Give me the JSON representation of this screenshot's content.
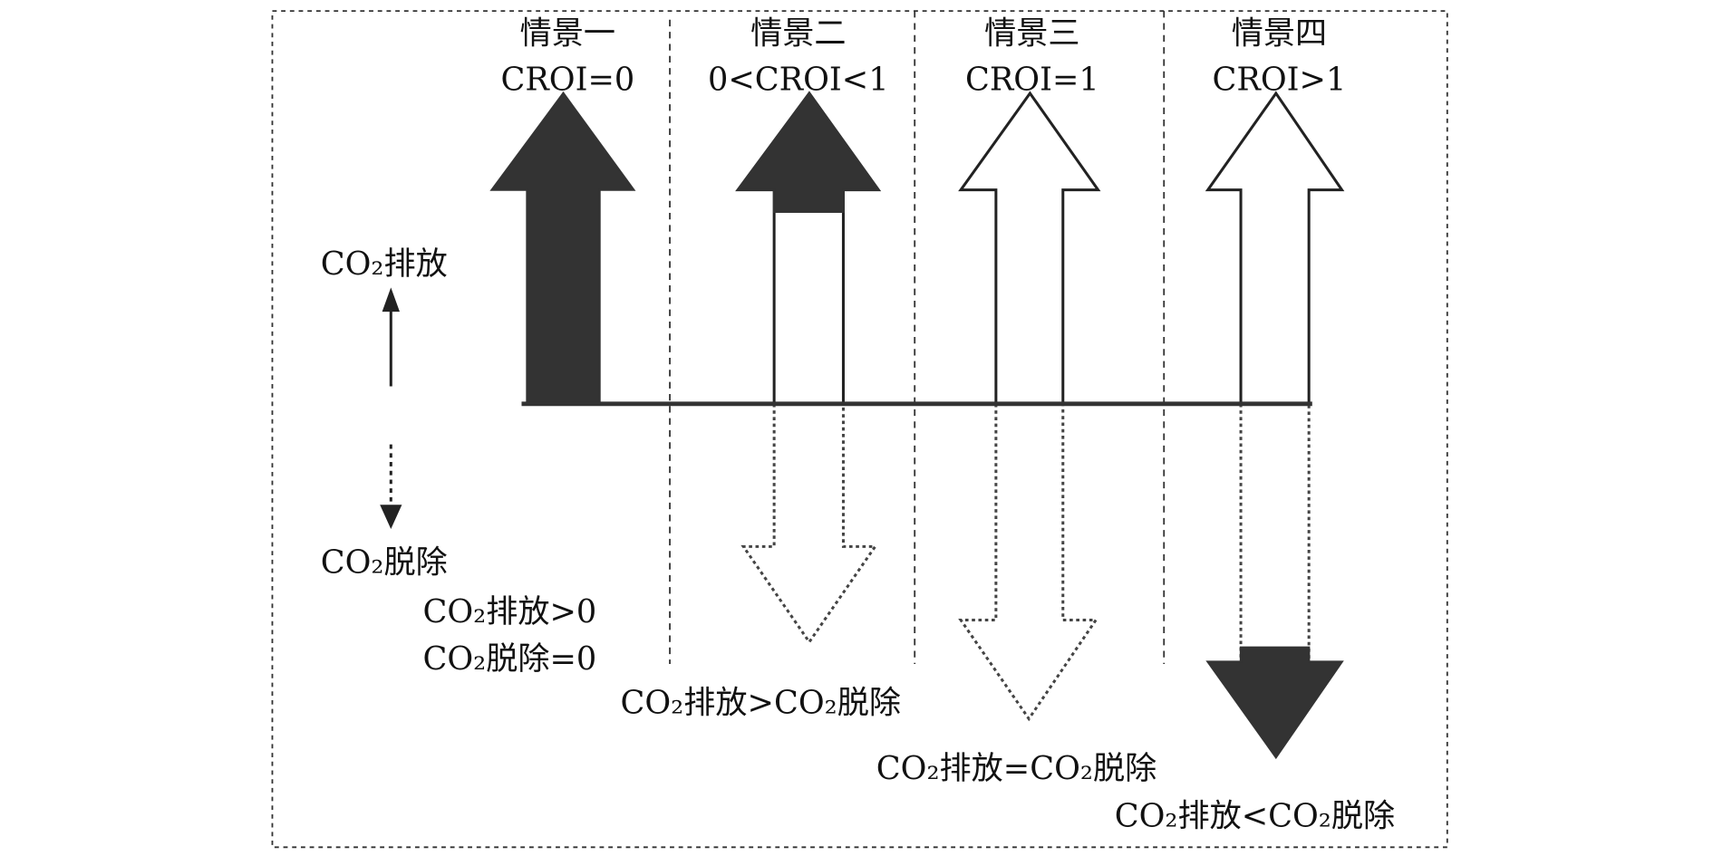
{
  "scenarios": [
    {
      "name": "情景一",
      "condition": "CROI=0"
    },
    {
      "name": "情景二",
      "condition": "0<CROI<1"
    },
    {
      "name": "情景三",
      "condition": "CROI=1"
    },
    {
      "name": "情景四",
      "condition": "CROI>1"
    }
  ],
  "legend": {
    "emission": "CO₂排放",
    "removal": "CO₂脱除"
  },
  "outcomes": {
    "s1_line1": "CO₂排放>0",
    "s1_line2": "CO₂脱除=0",
    "s2": "CO₂排放>CO₂脱除",
    "s3": "CO₂排放=CO₂脱除",
    "s4": "CO₂排放<CO₂脱除"
  },
  "colors": {
    "fill": "#333333",
    "line": "#222222",
    "background": "#ffffff"
  }
}
